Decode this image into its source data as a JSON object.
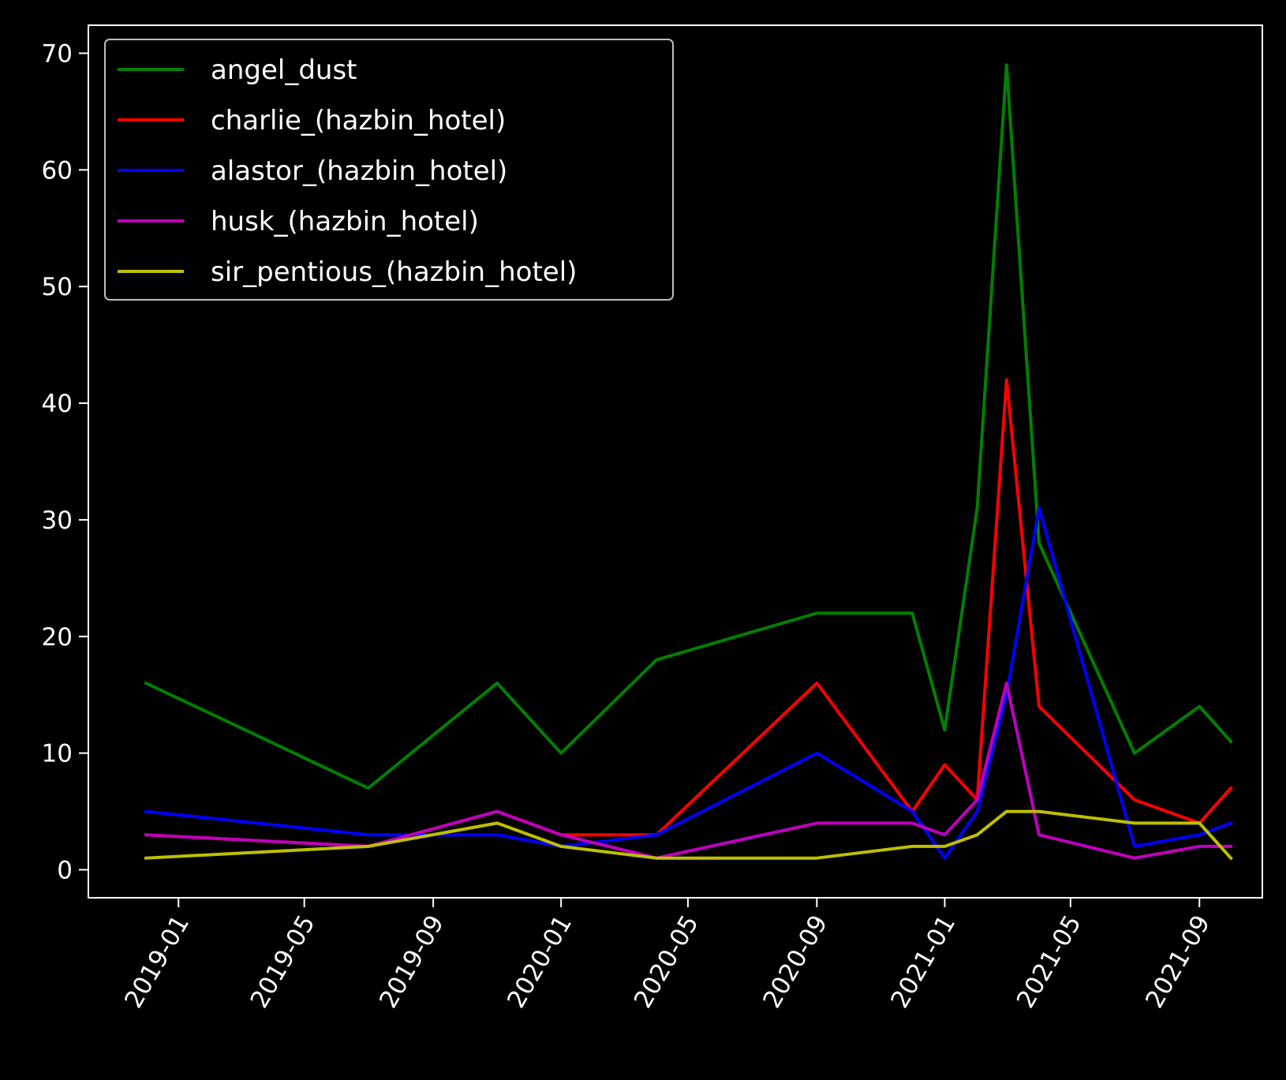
{
  "chart_data": {
    "type": "line",
    "title": "",
    "xlabel": "",
    "ylabel": "",
    "background": "#000000",
    "foreground": "#ffffff",
    "grid": false,
    "legend_position": "top-left",
    "x_axis": {
      "type": "date",
      "range": [
        "2018-10-07",
        "2021-10-31"
      ],
      "ticks": [
        "2019-01-01",
        "2019-05-01",
        "2019-09-01",
        "2020-01-01",
        "2020-05-01",
        "2020-09-01",
        "2021-01-01",
        "2021-05-01",
        "2021-09-01"
      ],
      "tick_labels": [
        "2019-01",
        "2019-05",
        "2019-09",
        "2020-01",
        "2020-05",
        "2020-09",
        "2021-01",
        "2021-05",
        "2021-09"
      ],
      "label_rotation": -60
    },
    "y_axis": {
      "range": [
        -2.4,
        72.4
      ],
      "ticks": [
        0,
        10,
        20,
        30,
        40,
        50,
        60,
        70
      ],
      "tick_labels": [
        "0",
        "10",
        "20",
        "30",
        "40",
        "50",
        "60",
        "70"
      ]
    },
    "series": [
      {
        "name": "angel_dust",
        "color": "#008000",
        "points": [
          [
            "2018-12-01",
            16
          ],
          [
            "2019-07-01",
            7
          ],
          [
            "2019-11-01",
            16
          ],
          [
            "2020-01-01",
            10
          ],
          [
            "2020-04-01",
            18
          ],
          [
            "2020-09-01",
            22
          ],
          [
            "2020-12-01",
            22
          ],
          [
            "2021-01-01",
            12
          ],
          [
            "2021-02-01",
            31
          ],
          [
            "2021-03-01",
            69
          ],
          [
            "2021-04-01",
            28
          ],
          [
            "2021-07-01",
            10
          ],
          [
            "2021-09-01",
            14
          ],
          [
            "2021-10-01",
            11
          ]
        ]
      },
      {
        "name": "charlie_(hazbin_hotel)",
        "color": "#ff0000",
        "points": [
          [
            "2018-12-01",
            3
          ],
          [
            "2019-07-01",
            2
          ],
          [
            "2019-11-01",
            5
          ],
          [
            "2020-01-01",
            3
          ],
          [
            "2020-04-01",
            3
          ],
          [
            "2020-09-01",
            16
          ],
          [
            "2020-12-01",
            5
          ],
          [
            "2021-01-01",
            9
          ],
          [
            "2021-02-01",
            6
          ],
          [
            "2021-03-01",
            42
          ],
          [
            "2021-04-01",
            14
          ],
          [
            "2021-07-01",
            6
          ],
          [
            "2021-09-01",
            4
          ],
          [
            "2021-10-01",
            7
          ]
        ]
      },
      {
        "name": "alastor_(hazbin_hotel)",
        "color": "#0000ff",
        "points": [
          [
            "2018-12-01",
            5
          ],
          [
            "2019-07-01",
            3
          ],
          [
            "2019-11-01",
            3
          ],
          [
            "2020-01-01",
            2
          ],
          [
            "2020-04-01",
            3
          ],
          [
            "2020-09-01",
            10
          ],
          [
            "2020-12-01",
            5
          ],
          [
            "2021-01-01",
            1
          ],
          [
            "2021-02-01",
            5
          ],
          [
            "2021-03-01",
            15
          ],
          [
            "2021-04-01",
            31
          ],
          [
            "2021-07-01",
            2
          ],
          [
            "2021-09-01",
            3
          ],
          [
            "2021-10-01",
            4
          ]
        ]
      },
      {
        "name": "husk_(hazbin_hotel)",
        "color": "#bf00bf",
        "points": [
          [
            "2018-12-01",
            3
          ],
          [
            "2019-07-01",
            2
          ],
          [
            "2019-11-01",
            5
          ],
          [
            "2020-01-01",
            3
          ],
          [
            "2020-04-01",
            1
          ],
          [
            "2020-09-01",
            4
          ],
          [
            "2020-12-01",
            4
          ],
          [
            "2021-01-01",
            3
          ],
          [
            "2021-02-01",
            6
          ],
          [
            "2021-03-01",
            16
          ],
          [
            "2021-04-01",
            3
          ],
          [
            "2021-07-01",
            1
          ],
          [
            "2021-09-01",
            2
          ],
          [
            "2021-10-01",
            2
          ]
        ]
      },
      {
        "name": "sir_pentious_(hazbin_hotel)",
        "color": "#bfbf00",
        "points": [
          [
            "2018-12-01",
            1
          ],
          [
            "2019-07-01",
            2
          ],
          [
            "2019-11-01",
            4
          ],
          [
            "2020-01-01",
            2
          ],
          [
            "2020-04-01",
            1
          ],
          [
            "2020-09-01",
            1
          ],
          [
            "2020-12-01",
            2
          ],
          [
            "2021-01-01",
            2
          ],
          [
            "2021-02-01",
            3
          ],
          [
            "2021-03-01",
            5
          ],
          [
            "2021-04-01",
            5
          ],
          [
            "2021-07-01",
            4
          ],
          [
            "2021-09-01",
            4
          ],
          [
            "2021-10-01",
            1
          ]
        ]
      }
    ]
  }
}
